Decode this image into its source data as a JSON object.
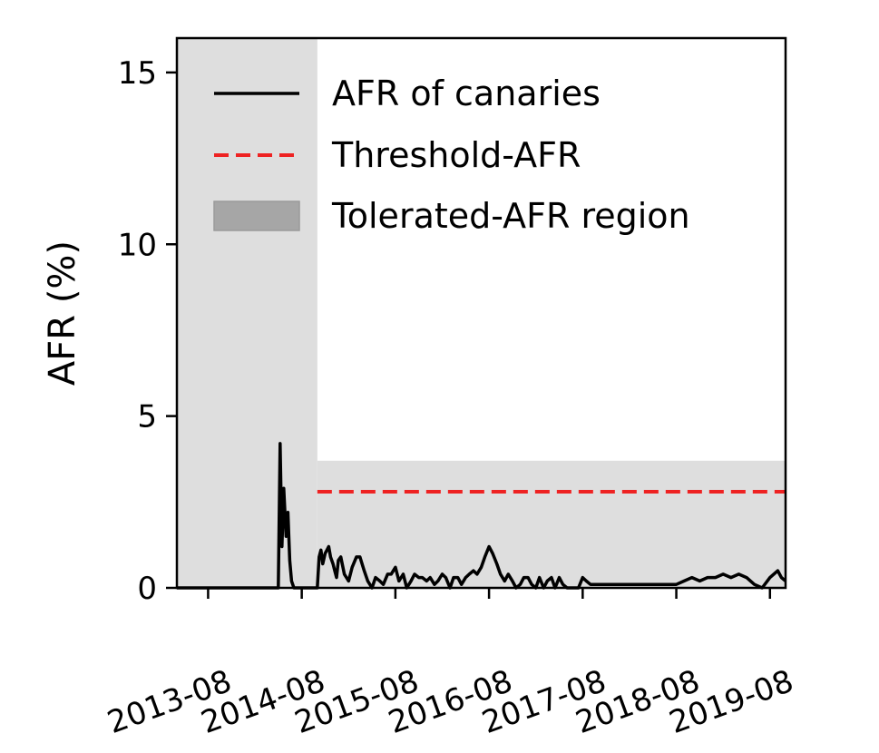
{
  "chart_data": {
    "type": "line",
    "title": "",
    "xlabel": "",
    "ylabel": "AFR (%)",
    "ylim": [
      0,
      16
    ],
    "xlim": [
      "2013-04",
      "2019-10"
    ],
    "yticks": [
      "0",
      "5",
      "10",
      "15"
    ],
    "xticks": [
      "2013-08",
      "2014-08",
      "2015-08",
      "2016-08",
      "2017-08",
      "2018-08",
      "2019-08"
    ],
    "grid": false,
    "legend_position": "top-right",
    "colors": {
      "afr_line": "#000000",
      "threshold": "#ee2222",
      "tolerated_region": "#dedede",
      "legend_patch": "#a6a6a6"
    },
    "legend": [
      "AFR of canaries",
      "Threshold-AFR",
      "Tolerated-AFR region"
    ],
    "threshold": {
      "value": 2.8,
      "x_range": [
        "2014-10",
        "2019-10"
      ]
    },
    "tolerated_region": [
      {
        "x_range": [
          "2013-04",
          "2014-10"
        ],
        "y_range": [
          0,
          16
        ]
      },
      {
        "x_range": [
          "2014-10",
          "2019-10"
        ],
        "y_range": [
          0,
          3.7
        ]
      }
    ],
    "series": [
      {
        "name": "AFR of canaries",
        "x": [
          "2013-04",
          "2014-04",
          "2014-05",
          "2014-05-08",
          "2014-05-15",
          "2014-05-22",
          "2014-06",
          "2014-06-08",
          "2014-06-15",
          "2014-06-22",
          "2014-07",
          "2014-07-15",
          "2014-08",
          "2014-09",
          "2014-10",
          "2014-10-08",
          "2014-10-15",
          "2014-10-22",
          "2014-11",
          "2014-11-08",
          "2014-11-15",
          "2014-11-22",
          "2014-12",
          "2014-12-08",
          "2014-12-15",
          "2014-12-22",
          "2015-01",
          "2015-01-15",
          "2015-02",
          "2015-02-15",
          "2015-03",
          "2015-03-15",
          "2015-04",
          "2015-04-15",
          "2015-05",
          "2015-05-15",
          "2015-06",
          "2015-06-15",
          "2015-07",
          "2015-07-15",
          "2015-08",
          "2015-08-15",
          "2015-09",
          "2015-09-15",
          "2015-10",
          "2015-10-15",
          "2015-11",
          "2015-11-15",
          "2015-12",
          "2015-12-15",
          "2016-01",
          "2016-01-15",
          "2016-02",
          "2016-02-15",
          "2016-03",
          "2016-03-15",
          "2016-04",
          "2016-04-15",
          "2016-05",
          "2016-05-15",
          "2016-06",
          "2016-06-15",
          "2016-07",
          "2016-07-15",
          "2016-08",
          "2016-08-15",
          "2016-09",
          "2016-09-15",
          "2016-10",
          "2016-10-15",
          "2016-11",
          "2016-11-15",
          "2016-12",
          "2016-12-15",
          "2017-01",
          "2017-01-15",
          "2017-02",
          "2017-02-15",
          "2017-03",
          "2017-03-15",
          "2017-04",
          "2017-04-15",
          "2017-05",
          "2017-05-15",
          "2017-06",
          "2017-06-15",
          "2017-07",
          "2017-07-15",
          "2017-08",
          "2017-08-15",
          "2017-09",
          "2017-09-15",
          "2017-10",
          "2017-10-15",
          "2017-11",
          "2017-11-15",
          "2017-12",
          "2017-12-15",
          "2018-01",
          "2018-02",
          "2018-03",
          "2018-04",
          "2018-05",
          "2018-06",
          "2018-07",
          "2018-08",
          "2018-09",
          "2018-10",
          "2018-11",
          "2018-12",
          "2019-01",
          "2019-02",
          "2019-03",
          "2019-04",
          "2019-05",
          "2019-06",
          "2019-07",
          "2019-08",
          "2019-09",
          "2019-09-15",
          "2019-10"
        ],
        "values": [
          0,
          0,
          0,
          4.2,
          1.2,
          2.9,
          1.5,
          2.2,
          0.8,
          0.2,
          0,
          0,
          0,
          0,
          0,
          0.9,
          1.1,
          0.7,
          1.0,
          1.1,
          1.2,
          0.9,
          0.7,
          0.5,
          0.3,
          0.8,
          0.9,
          0.4,
          0.2,
          0.6,
          0.9,
          0.9,
          0.5,
          0.2,
          0,
          0.3,
          0.2,
          0.1,
          0.4,
          0.4,
          0.6,
          0.2,
          0.4,
          0,
          0.2,
          0.4,
          0.3,
          0.3,
          0.2,
          0.3,
          0.1,
          0.2,
          0.4,
          0.3,
          0,
          0.3,
          0.3,
          0.1,
          0.3,
          0.4,
          0.5,
          0.4,
          0.6,
          0.9,
          1.2,
          1.0,
          0.7,
          0.4,
          0.2,
          0.4,
          0.2,
          0,
          0.1,
          0.3,
          0.3,
          0.1,
          0,
          0.3,
          0,
          0.2,
          0.3,
          0,
          0.3,
          0.1,
          0,
          0,
          0,
          0,
          0.3,
          0.2,
          0.1,
          0.1,
          0.1,
          0.1,
          0.1,
          0.1,
          0.1,
          0.1,
          0.1,
          0.1,
          0.1,
          0.1,
          0.1,
          0.1,
          0.1,
          0.1,
          0.2,
          0.3,
          0.2,
          0.3,
          0.3,
          0.4,
          0.3,
          0.4,
          0.3,
          0.1,
          0.0,
          0.3,
          0.5,
          0.3,
          0.2
        ]
      }
    ]
  }
}
